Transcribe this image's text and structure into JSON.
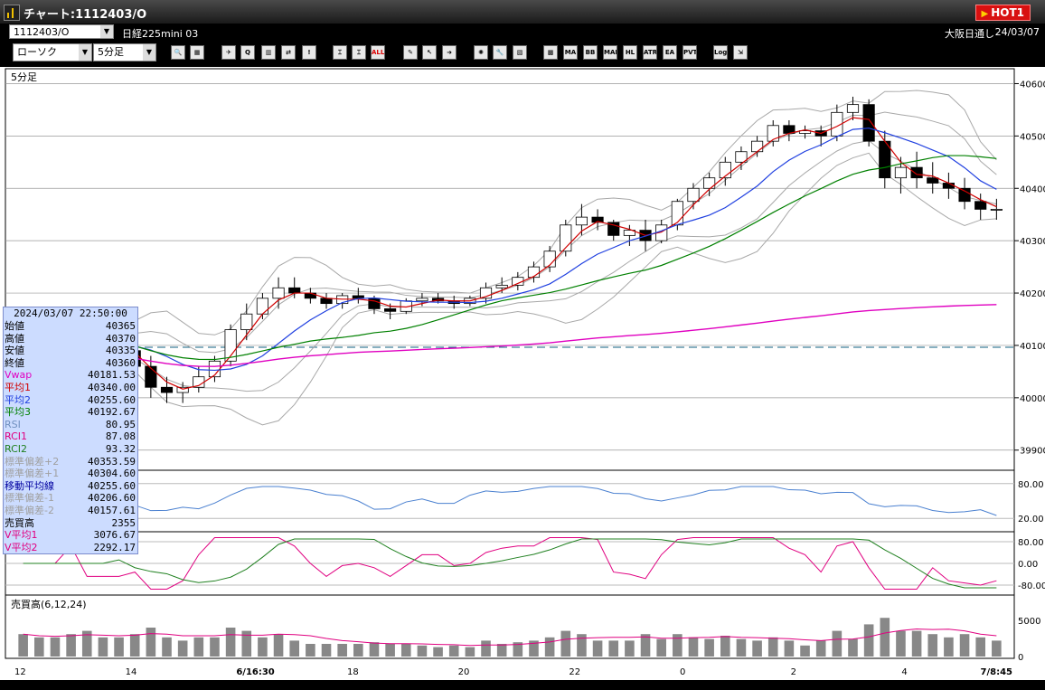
{
  "window": {
    "title": "チャート:1112403/O",
    "hot_label": "HOT1"
  },
  "infobar": {
    "symbol": "1112403/O",
    "instrument": "日経225mini 03",
    "session": "大阪日通し",
    "date": "24/03/07"
  },
  "toolbar": {
    "chart_type": "ローソク",
    "interval": "5分足",
    "tool_labels": {
      "ma": "MA",
      "bb": "BB",
      "mae": "MAE",
      "hl": "HL",
      "atr": "ATR",
      "ea": "EA",
      "pvt": "PVT",
      "log": "Log",
      "all": "ALL"
    }
  },
  "chart": {
    "timeframe_label": "5分足",
    "price_ticks": [
      "40600",
      "40500",
      "40400",
      "40300",
      "40200",
      "40100",
      "40000",
      "39900"
    ],
    "x_labels": [
      "12",
      "14",
      "6/16:30",
      "18",
      "20",
      "22",
      "0",
      "2",
      "4",
      "7/8:45"
    ],
    "rsi_ticks": [
      "80.00",
      "20.00"
    ],
    "rci_ticks": [
      "80.00",
      "0.00",
      "-80.00"
    ],
    "volume_title": "売買高(6,12,24)",
    "volume_ticks": [
      "5000",
      "0"
    ]
  },
  "chart_data": {
    "type": "candlestick",
    "price_range": [
      39865,
      40625
    ],
    "candles_ohlc": [
      [
        40100,
        40120,
        40060,
        40080
      ],
      [
        40080,
        40120,
        40070,
        40110
      ],
      [
        40110,
        40150,
        40100,
        40140
      ],
      [
        40140,
        40160,
        40100,
        40120
      ],
      [
        40120,
        40130,
        40060,
        40080
      ],
      [
        40080,
        40120,
        40070,
        40110
      ],
      [
        40110,
        40130,
        40080,
        40090
      ],
      [
        40090,
        40100,
        40040,
        40060
      ],
      [
        40060,
        40080,
        40000,
        40020
      ],
      [
        40020,
        40040,
        39990,
        40010
      ],
      [
        40010,
        40030,
        39990,
        40020
      ],
      [
        40020,
        40060,
        40010,
        40040
      ],
      [
        40040,
        40080,
        40030,
        40070
      ],
      [
        40070,
        40140,
        40060,
        40130
      ],
      [
        40130,
        40180,
        40110,
        40160
      ],
      [
        40160,
        40200,
        40150,
        40190
      ],
      [
        40190,
        40230,
        40170,
        40210
      ],
      [
        40210,
        40230,
        40190,
        40200
      ],
      [
        40200,
        40210,
        40180,
        40190
      ],
      [
        40190,
        40200,
        40170,
        40180
      ],
      [
        40180,
        40200,
        40170,
        40195
      ],
      [
        40195,
        40210,
        40180,
        40190
      ],
      [
        40190,
        40195,
        40160,
        40170
      ],
      [
        40170,
        40180,
        40150,
        40165
      ],
      [
        40165,
        40190,
        40160,
        40185
      ],
      [
        40185,
        40200,
        40175,
        40190
      ],
      [
        40190,
        40200,
        40180,
        40185
      ],
      [
        40185,
        40195,
        40170,
        40180
      ],
      [
        40180,
        40195,
        40175,
        40190
      ],
      [
        40190,
        40220,
        40180,
        40210
      ],
      [
        40210,
        40230,
        40200,
        40215
      ],
      [
        40215,
        40240,
        40205,
        40230
      ],
      [
        40230,
        40260,
        40220,
        40250
      ],
      [
        40250,
        40290,
        40240,
        40280
      ],
      [
        40280,
        40340,
        40270,
        40330
      ],
      [
        40330,
        40370,
        40310,
        40345
      ],
      [
        40345,
        40360,
        40320,
        40335
      ],
      [
        40335,
        40340,
        40300,
        40310
      ],
      [
        40310,
        40330,
        40290,
        40320
      ],
      [
        40320,
        40340,
        40280,
        40300
      ],
      [
        40300,
        40340,
        40295,
        40330
      ],
      [
        40330,
        40380,
        40320,
        40375
      ],
      [
        40375,
        40410,
        40360,
        40400
      ],
      [
        40400,
        40430,
        40385,
        40420
      ],
      [
        40420,
        40460,
        40405,
        40450
      ],
      [
        40450,
        40480,
        40435,
        40470
      ],
      [
        40470,
        40500,
        40460,
        40490
      ],
      [
        40490,
        40530,
        40480,
        40520
      ],
      [
        40520,
        40530,
        40490,
        40505
      ],
      [
        40505,
        40520,
        40495,
        40510
      ],
      [
        40510,
        40520,
        40480,
        40500
      ],
      [
        40500,
        40560,
        40490,
        40545
      ],
      [
        40545,
        40575,
        40530,
        40560
      ],
      [
        40560,
        40570,
        40480,
        40490
      ],
      [
        40490,
        40510,
        40400,
        40420
      ],
      [
        40420,
        40460,
        40390,
        40440
      ],
      [
        40440,
        40470,
        40400,
        40420
      ],
      [
        40420,
        40450,
        40390,
        40410
      ],
      [
        40410,
        40430,
        40380,
        40400
      ],
      [
        40400,
        40420,
        40360,
        40375
      ],
      [
        40375,
        40390,
        40340,
        40360
      ],
      [
        40360,
        40380,
        40340,
        40360
      ]
    ],
    "overlay_lines": [
      "平均1",
      "平均2",
      "平均3",
      "Vwap",
      "標準偏差+2",
      "標準偏差+1",
      "標準偏差-1",
      "標準偏差-2"
    ],
    "volume_ma": [
      6,
      12,
      24
    ]
  },
  "data_panel": {
    "datetime": "2024/03/07 22:50:00",
    "rows": [
      {
        "label": "始値",
        "value": "40365",
        "color": "#000000"
      },
      {
        "label": "高値",
        "value": "40370",
        "color": "#000000"
      },
      {
        "label": "安値",
        "value": "40335",
        "color": "#000000"
      },
      {
        "label": "終値",
        "value": "40360",
        "color": "#000000"
      },
      {
        "label": "Vwap",
        "value": "40181.53",
        "color": "#e000c0"
      },
      {
        "label": "平均1",
        "value": "40340.00",
        "color": "#d00000"
      },
      {
        "label": "平均2",
        "value": "40255.60",
        "color": "#2040e0"
      },
      {
        "label": "平均3",
        "value": "40192.67",
        "color": "#008000"
      },
      {
        "label": "RSI",
        "value": "80.95",
        "color": "#7090c0"
      },
      {
        "label": "RCI1",
        "value": "87.08",
        "color": "#e00080"
      },
      {
        "label": "RCI2",
        "value": "93.32",
        "color": "#208020"
      },
      {
        "label": "標準偏差+2",
        "value": "40353.59",
        "color": "#a0a0a0"
      },
      {
        "label": "標準偏差+1",
        "value": "40304.60",
        "color": "#a0a0a0"
      },
      {
        "label": "移動平均線",
        "value": "40255.60",
        "color": "#0000a0"
      },
      {
        "label": "標準偏差-1",
        "value": "40206.60",
        "color": "#a0a0a0"
      },
      {
        "label": "標準偏差-2",
        "value": "40157.61",
        "color": "#a0a0a0"
      },
      {
        "label": "売買高",
        "value": "2355",
        "color": "#000000"
      },
      {
        "label": "V平均1",
        "value": "3076.67",
        "color": "#e00080"
      },
      {
        "label": "V平均2",
        "value": "2292.17",
        "color": "#e00080"
      }
    ]
  },
  "colors": {
    "sma1": "#d00000",
    "sma2": "#2040e0",
    "sma3": "#008000",
    "vwap": "#e000c0",
    "bb": "#a8a8a8",
    "rsi": "#4a80d0",
    "rci1": "#e00080",
    "rci2": "#208020",
    "volume": "#888888"
  }
}
